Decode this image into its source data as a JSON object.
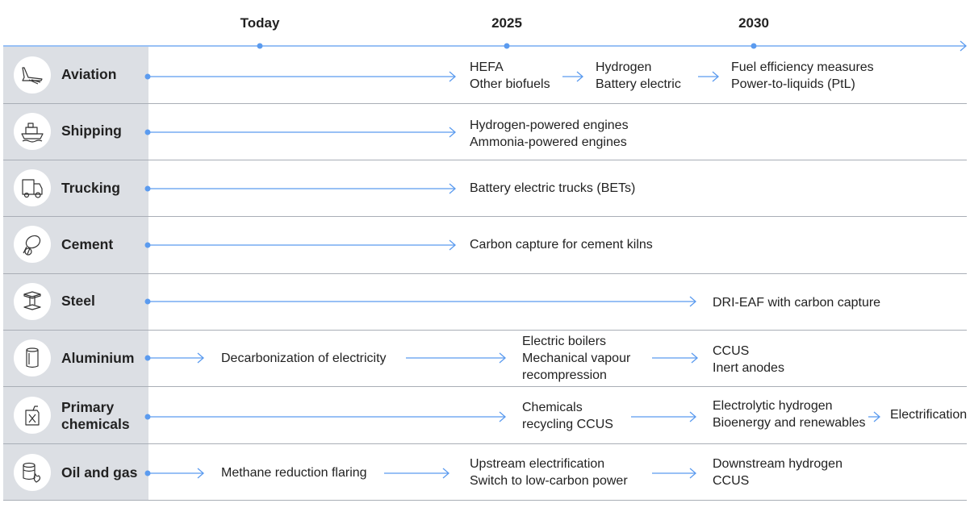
{
  "colors": {
    "accent": "#5b9bef",
    "sidebar": "#dcdfe4",
    "divider": "#a9aeb6",
    "text": "#222222"
  },
  "timeline": {
    "today": "Today",
    "y2025": "2025",
    "y2030": "2030"
  },
  "rows": [
    {
      "sector": "Aviation",
      "icon": "airplane-icon",
      "cells": [
        {
          "lines": [
            "HEFA",
            "Other biofuels"
          ]
        },
        {
          "lines": [
            "Hydrogen",
            "Battery electric"
          ]
        },
        {
          "lines": [
            "Fuel efficiency measures",
            "Power-to-liquids (PtL)"
          ]
        }
      ]
    },
    {
      "sector": "Shipping",
      "icon": "ship-icon",
      "cells": [
        {
          "lines": [
            "Hydrogen-powered engines",
            "Ammonia-powered engines"
          ]
        }
      ]
    },
    {
      "sector": "Trucking",
      "icon": "truck-icon",
      "cells": [
        {
          "lines": [
            "Battery electric trucks (BETs)"
          ]
        }
      ]
    },
    {
      "sector": "Cement",
      "icon": "cement-mixer-icon",
      "cells": [
        {
          "lines": [
            "Carbon capture for cement kilns"
          ]
        }
      ]
    },
    {
      "sector": "Steel",
      "icon": "steel-beam-icon",
      "cells": [
        {
          "lines": [
            "DRI-EAF with carbon capture"
          ]
        }
      ]
    },
    {
      "sector": "Aluminium",
      "icon": "aluminium-can-icon",
      "cells": [
        {
          "lines": [
            "Decarbonization of electricity"
          ]
        },
        {
          "lines": [
            "Electric boilers",
            "Mechanical vapour",
            "recompression"
          ]
        },
        {
          "lines": [
            "CCUS",
            "Inert anodes"
          ]
        }
      ]
    },
    {
      "sector_lines": [
        "Primary",
        "chemicals"
      ],
      "icon": "chemical-canister-icon",
      "cells": [
        {
          "lines": [
            "Chemicals",
            "recycling CCUS"
          ]
        },
        {
          "lines": [
            "Electrolytic hydrogen",
            "Bioenergy and renewables"
          ]
        },
        {
          "lines": [
            "Electrification"
          ]
        }
      ]
    },
    {
      "sector": "Oil and gas",
      "icon": "oil-barrel-icon",
      "cells": [
        {
          "lines": [
            "Methane reduction flaring"
          ]
        },
        {
          "lines": [
            "Upstream electrification",
            "Switch to low-carbon power"
          ]
        },
        {
          "lines": [
            "Downstream hydrogen",
            "CCUS"
          ]
        }
      ]
    }
  ]
}
